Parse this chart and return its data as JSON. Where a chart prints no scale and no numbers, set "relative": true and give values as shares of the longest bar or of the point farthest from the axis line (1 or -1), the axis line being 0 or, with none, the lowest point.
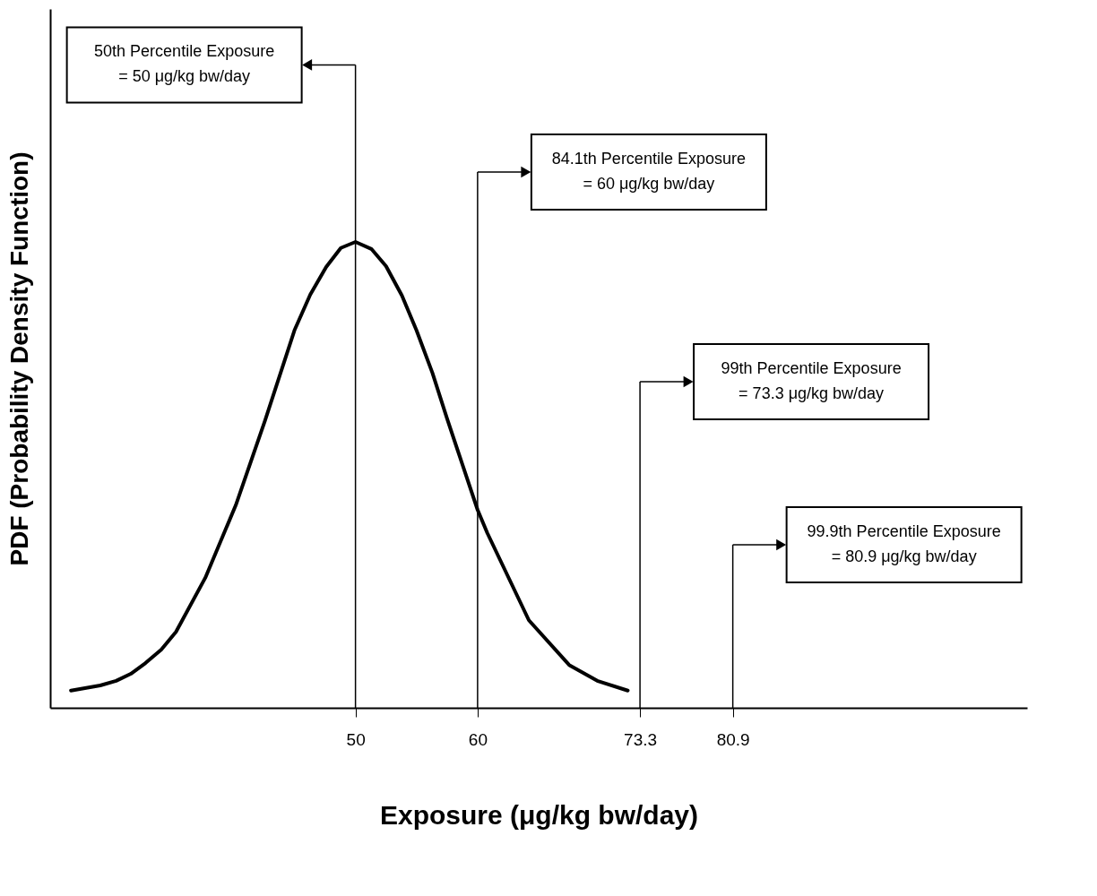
{
  "chart_data": {
    "type": "line",
    "relative": true,
    "xlabel": "Exposure (μg/kg bw/day)",
    "ylabel": "PDF (Probability Density Function)",
    "xlim": [
      25,
      105
    ],
    "xticks": [
      50,
      60,
      73.3,
      80.9
    ],
    "marker": "none",
    "line_style": "solid",
    "x": [
      26.7,
      29.1,
      30.4,
      31.6,
      32.8,
      34.1,
      35.3,
      37.7,
      40.2,
      42.6,
      45.0,
      46.3,
      47.6,
      48.8,
      50,
      51.3,
      52.5,
      53.8,
      55.0,
      56.3,
      57.5,
      58.8,
      60,
      60.8,
      64.2,
      67.5,
      69.8,
      72.3
    ],
    "series": [
      {
        "color": "#000000",
        "values": [
          0.037,
          0.048,
          0.058,
          0.073,
          0.096,
          0.125,
          0.163,
          0.279,
          0.435,
          0.617,
          0.81,
          0.887,
          0.946,
          0.987,
          1,
          0.985,
          0.948,
          0.885,
          0.81,
          0.719,
          0.621,
          0.519,
          0.425,
          0.375,
          0.188,
          0.092,
          0.058,
          0.037
        ]
      }
    ],
    "ref_lines": [
      {
        "axis": "x",
        "value": 50,
        "color": "#000000"
      },
      {
        "axis": "x",
        "value": 60,
        "color": "#000000"
      },
      {
        "axis": "x",
        "value": 73.3,
        "color": "#000000"
      },
      {
        "axis": "x",
        "value": 80.9,
        "color": "#000000"
      }
    ],
    "annotations": [
      "50th Percentile Exposure\n= 50 μg/kg bw/day",
      "84.1th Percentile Exposure\n= 60 μg/kg bw/day",
      "99th Percentile Exposure\n= 73.3 μg/kg bw/day",
      "99.9th Percentile Exposure\n= 80.9 μg/kg bw/day"
    ]
  }
}
